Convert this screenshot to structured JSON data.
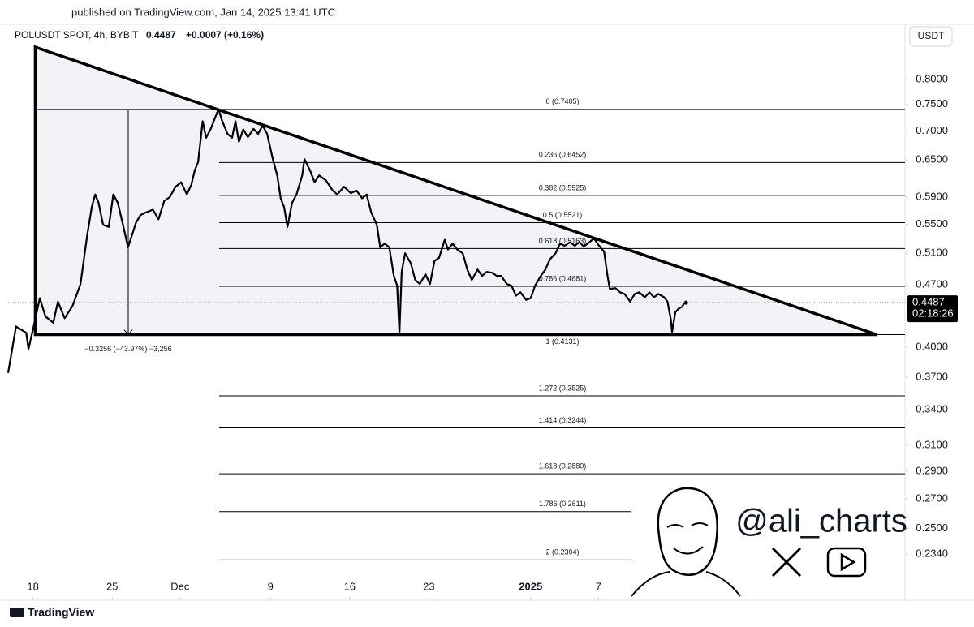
{
  "header": {
    "published": "published on TradingView.com, Jan 14, 2025 13:41 UTC",
    "logo": "TradingView"
  },
  "chart_data": {
    "type": "line",
    "title": "POLUSDT SPOT, 4h, BYBIT",
    "last_price": 0.4487,
    "change": "+0.0007 (+0.16%)",
    "currency": "USDT",
    "countdown": "02:18:26",
    "watermark": "@ali_charts",
    "log_scale": true,
    "grid": false,
    "xlim": [
      -2.2,
      77.1
    ],
    "ylim": [
      0.22,
      0.9
    ],
    "xticks": [
      {
        "value": 0,
        "label": "18"
      },
      {
        "value": 7,
        "label": "25"
      },
      {
        "value": 13,
        "label": "Dec"
      },
      {
        "value": 21,
        "label": "9"
      },
      {
        "value": 28,
        "label": "16"
      },
      {
        "value": 35,
        "label": "23"
      },
      {
        "value": 44,
        "label": "2025"
      },
      {
        "value": 50,
        "label": "7"
      }
    ],
    "yticks": [
      {
        "value": 0.8,
        "label": "0.8000"
      },
      {
        "value": 0.75,
        "label": "0.7500"
      },
      {
        "value": 0.7,
        "label": "0.7000"
      },
      {
        "value": 0.65,
        "label": "0.6500"
      },
      {
        "value": 0.59,
        "label": "0.5900"
      },
      {
        "value": 0.55,
        "label": "0.5500"
      },
      {
        "value": 0.51,
        "label": "0.5100"
      },
      {
        "value": 0.47,
        "label": "0.4700"
      },
      {
        "value": 0.4,
        "label": "0.4000"
      },
      {
        "value": 0.37,
        "label": "0.3700"
      },
      {
        "value": 0.34,
        "label": "0.3400"
      },
      {
        "value": 0.31,
        "label": "0.3100"
      },
      {
        "value": 0.29,
        "label": "0.2900"
      },
      {
        "value": 0.27,
        "label": "0.2700"
      },
      {
        "value": 0.25,
        "label": "0.2500"
      },
      {
        "value": 0.234,
        "label": "0.2340"
      }
    ],
    "series": [
      {
        "name": "POLUSDT",
        "color": "#000000",
        "x": [
          -2.2,
          -1.5,
          -0.6,
          -0.4,
          0.1,
          0.6,
          1.1,
          1.8,
          2.2,
          2.8,
          3.5,
          4.2,
          4.8,
          5.2,
          5.5,
          5.8,
          6.2,
          6.7,
          7.1,
          7.5,
          8.0,
          8.4,
          8.7,
          9.1,
          9.5,
          10.0,
          10.6,
          11.1,
          11.6,
          12.1,
          12.6,
          13.1,
          13.6,
          14.0,
          14.3,
          14.6,
          15.0,
          15.3,
          15.7,
          16.2,
          16.4,
          16.7,
          17.2,
          17.6,
          17.9,
          18.2,
          18.6,
          19.0,
          19.5,
          19.9,
          20.3,
          20.7,
          21.2,
          21.6,
          21.9,
          22.2,
          22.5,
          22.9,
          23.3,
          23.8,
          24.0,
          24.5,
          24.9,
          25.3,
          25.9,
          26.5,
          26.9,
          27.5,
          28.1,
          28.6,
          29.1,
          29.5,
          29.9,
          30.4,
          30.7,
          31.1,
          31.5,
          31.9,
          32.2,
          32.4,
          32.6,
          32.9,
          33.4,
          33.8,
          34.2,
          34.7,
          35.1,
          35.5,
          35.9,
          36.4,
          36.7,
          37.1,
          37.5,
          38.0,
          38.4,
          38.8,
          39.3,
          39.7,
          40.1,
          40.6,
          41.0,
          41.4,
          41.9,
          42.3,
          42.7,
          43.1,
          43.6,
          44.0,
          44.4,
          44.9,
          45.3,
          45.7,
          46.2,
          46.6,
          47.0,
          47.5,
          47.9,
          48.3,
          48.7,
          49.2,
          49.6,
          50.0,
          50.5,
          50.8,
          51.0,
          51.5,
          51.9,
          52.3,
          52.8,
          53.2,
          53.6,
          54.1,
          54.5,
          54.9,
          55.3,
          55.8,
          56.1,
          56.4,
          56.5,
          56.8,
          57.1,
          57.4,
          57.6
        ],
        "values": [
          0.374,
          0.422,
          0.415,
          0.398,
          0.424,
          0.454,
          0.433,
          0.426,
          0.45,
          0.431,
          0.445,
          0.471,
          0.535,
          0.575,
          0.594,
          0.581,
          0.549,
          0.546,
          0.594,
          0.581,
          0.546,
          0.518,
          0.532,
          0.552,
          0.563,
          0.567,
          0.571,
          0.557,
          0.584,
          0.59,
          0.606,
          0.613,
          0.594,
          0.609,
          0.632,
          0.646,
          0.718,
          0.688,
          0.703,
          0.73,
          0.741,
          0.72,
          0.695,
          0.688,
          0.718,
          0.681,
          0.703,
          0.689,
          0.704,
          0.695,
          0.71,
          0.695,
          0.651,
          0.624,
          0.588,
          0.575,
          0.546,
          0.581,
          0.594,
          0.624,
          0.651,
          0.632,
          0.613,
          0.624,
          0.616,
          0.6,
          0.594,
          0.606,
          0.596,
          0.6,
          0.588,
          0.594,
          0.567,
          0.549,
          0.518,
          0.523,
          0.518,
          0.481,
          0.469,
          0.415,
          0.486,
          0.51,
          0.497,
          0.476,
          0.471,
          0.483,
          0.471,
          0.5,
          0.504,
          0.528,
          0.515,
          0.523,
          0.515,
          0.51,
          0.489,
          0.476,
          0.489,
          0.481,
          0.486,
          0.485,
          0.481,
          0.481,
          0.471,
          0.469,
          0.457,
          0.461,
          0.452,
          0.454,
          0.469,
          0.481,
          0.489,
          0.502,
          0.51,
          0.523,
          0.52,
          0.525,
          0.52,
          0.525,
          0.519,
          0.525,
          0.53,
          0.521,
          0.512,
          0.481,
          0.465,
          0.466,
          0.461,
          0.459,
          0.45,
          0.459,
          0.461,
          0.455,
          0.461,
          0.455,
          0.459,
          0.455,
          0.45,
          0.429,
          0.416,
          0.438,
          0.442,
          0.444,
          0.4487
        ]
      }
    ],
    "pattern": {
      "x": [
        0.2,
        0.2,
        74.6
      ],
      "values": [
        0.87,
        0.4131,
        0.4131
      ]
    },
    "measure": "−0.3256 (−43.97%) −3,256",
    "fib_levels": [
      {
        "label": "0 (0.7405)",
        "value": 0.7405
      },
      {
        "label": "0.236 (0.6452)",
        "value": 0.6452
      },
      {
        "label": "0.382 (0.5925)",
        "value": 0.5925
      },
      {
        "label": "0.5 (0.5521)",
        "value": 0.5521
      },
      {
        "label": "0.618 (0.5163)",
        "value": 0.5163
      },
      {
        "label": "0.786 (0.4681)",
        "value": 0.4681
      },
      {
        "label": "1 (0.4131)",
        "value": 0.4131
      },
      {
        "label": "1.272 (0.3525)",
        "value": 0.3525
      },
      {
        "label": "1.414 (0.3244)",
        "value": 0.3244
      },
      {
        "label": "1.618 (0.2880)",
        "value": 0.288
      },
      {
        "label": "1.786 (0.2611)",
        "value": 0.2611
      },
      {
        "label": "2 (0.2304)",
        "value": 0.2304
      }
    ]
  }
}
